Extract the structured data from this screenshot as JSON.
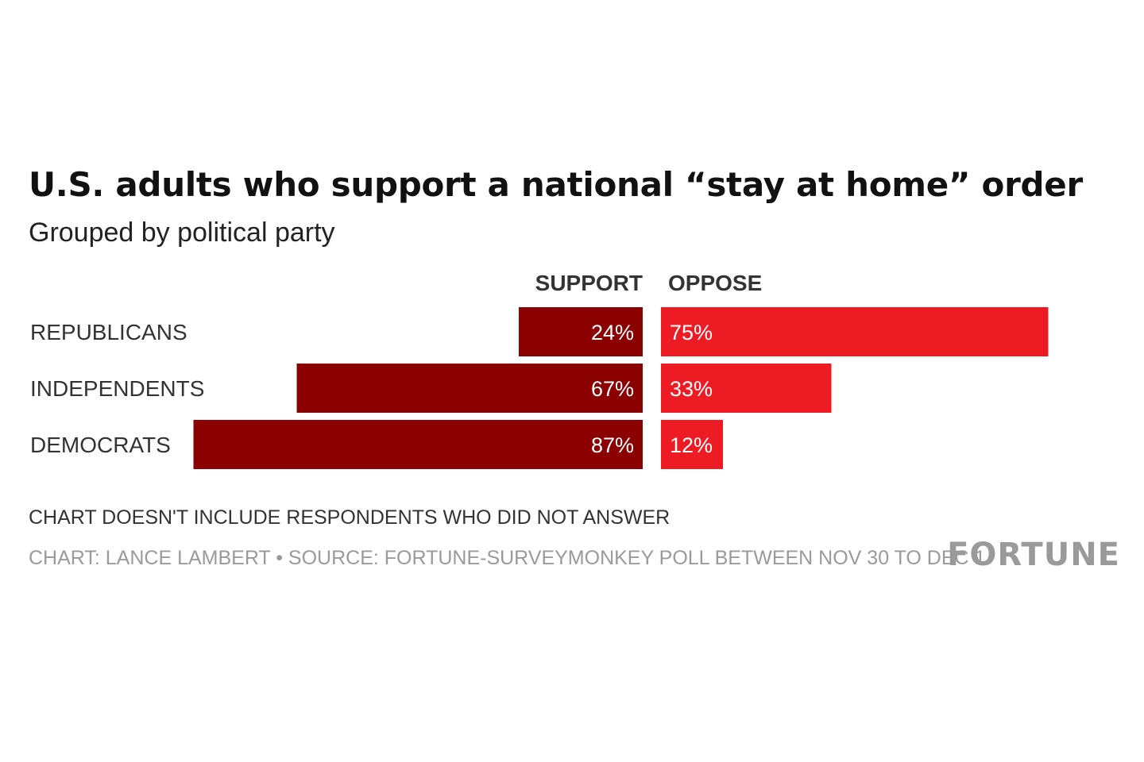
{
  "title": "U.S. adults who support a national “stay at home” order",
  "subtitle": "Grouped by political party",
  "note": "CHART DOESN'T INCLUDE RESPONDENTS WHO DID NOT ANSWER",
  "credit": "CHART: LANCE LAMBERT • SOURCE: FORTUNE-SURVEYMONKEY POLL BETWEEN NOV 30 TO DEC 1",
  "logo_text": "FORTUNE",
  "colors": {
    "support": "#8b0000",
    "oppose": "#ed1c24",
    "credit_gray": "#9a9a9a"
  },
  "chart_data": {
    "type": "bar",
    "orientation": "horizontal-diverging",
    "categories": [
      "REPUBLICANS",
      "INDEPENDENTS",
      "DEMOCRATS"
    ],
    "series": [
      {
        "name": "SUPPORT",
        "values": [
          24,
          67,
          87
        ],
        "labels": [
          "24%",
          "67%",
          "87%"
        ]
      },
      {
        "name": "OPPOSE",
        "values": [
          75,
          33,
          12
        ],
        "labels": [
          "75%",
          "33%",
          "12%"
        ]
      }
    ],
    "unit": "%",
    "xlim": [
      0,
      100
    ],
    "grid": false
  }
}
